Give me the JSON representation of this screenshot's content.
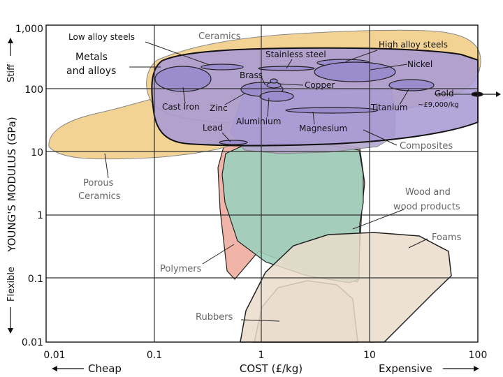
{
  "chart_data": {
    "type": "scatter",
    "title": "",
    "xlabel": "COST (£/kg)",
    "ylabel": "YOUNG'S MODULUS (GPa)",
    "xscale": "log",
    "yscale": "log",
    "xlim": [
      0.01,
      100
    ],
    "ylim": [
      0.01,
      1000
    ],
    "grid": true,
    "x_ticks": [
      "0.01",
      "0.1",
      "1",
      "10",
      "100"
    ],
    "y_ticks": [
      "0.01",
      "0.1",
      "1",
      "10",
      "100",
      "1,000"
    ],
    "x_direction_left": "Cheap",
    "x_direction_right": "Expensive",
    "y_direction_top": "Stiff",
    "y_direction_bottom": "Flexible",
    "envelopes": [
      {
        "label": "Rubbers",
        "cost_range": [
          1,
          10
        ],
        "modulus_range": [
          0.01,
          0.1
        ],
        "color": "#eadccb"
      },
      {
        "label": "Foams",
        "cost_range": [
          1,
          40
        ],
        "modulus_range": [
          0.01,
          0.5
        ],
        "color": "#eadccb"
      },
      {
        "label": "Polymers",
        "cost_range": [
          0.6,
          10
        ],
        "modulus_range": [
          0.1,
          5
        ],
        "color": "#f0b0a4"
      },
      {
        "label": "Wood and wood products",
        "cost_range": [
          0.6,
          9
        ],
        "modulus_range": [
          0.1,
          20
        ],
        "color": "#9ccfbd"
      },
      {
        "label": "Porous Ceramics",
        "cost_range": [
          0.01,
          1
        ],
        "modulus_range": [
          8,
          60
        ],
        "color": "#f3d394"
      },
      {
        "label": "Ceramics",
        "cost_range": [
          0.1,
          100
        ],
        "modulus_range": [
          20,
          700
        ],
        "color": "#f3d394"
      },
      {
        "label": "Composites",
        "cost_range": [
          1,
          10
        ],
        "modulus_range": [
          8,
          100
        ],
        "color": "#b4a6cf"
      },
      {
        "label": "Metals and alloys",
        "cost_range": [
          0.1,
          100
        ],
        "modulus_range": [
          10,
          400
        ],
        "color": "#a89ad4"
      }
    ],
    "points": [
      {
        "label": "Low alloy steels",
        "cost": 0.4,
        "modulus": 200
      },
      {
        "label": "Stainless steel",
        "cost": 1.3,
        "modulus": 200
      },
      {
        "label": "High alloy steels",
        "cost": 5,
        "modulus": 220
      },
      {
        "label": "Nickel",
        "cost": 5,
        "modulus": 200
      },
      {
        "label": "Cast Iron",
        "cost": 0.3,
        "modulus": 140
      },
      {
        "label": "Brass",
        "cost": 1.1,
        "modulus": 120
      },
      {
        "label": "Copper",
        "cost": 1.1,
        "modulus": 120
      },
      {
        "label": "Zinc",
        "cost": 1,
        "modulus": 90
      },
      {
        "label": "Aluminium",
        "cost": 1.3,
        "modulus": 70
      },
      {
        "label": "Titanium",
        "cost": 25,
        "modulus": 110
      },
      {
        "label": "Magnesium",
        "cost": 3.5,
        "modulus": 45
      },
      {
        "label": "Lead",
        "cost": 0.6,
        "modulus": 14
      },
      {
        "label": "Gold",
        "cost": 100,
        "modulus": 80
      }
    ],
    "annotations": [
      "~£9,000/kg"
    ]
  }
}
